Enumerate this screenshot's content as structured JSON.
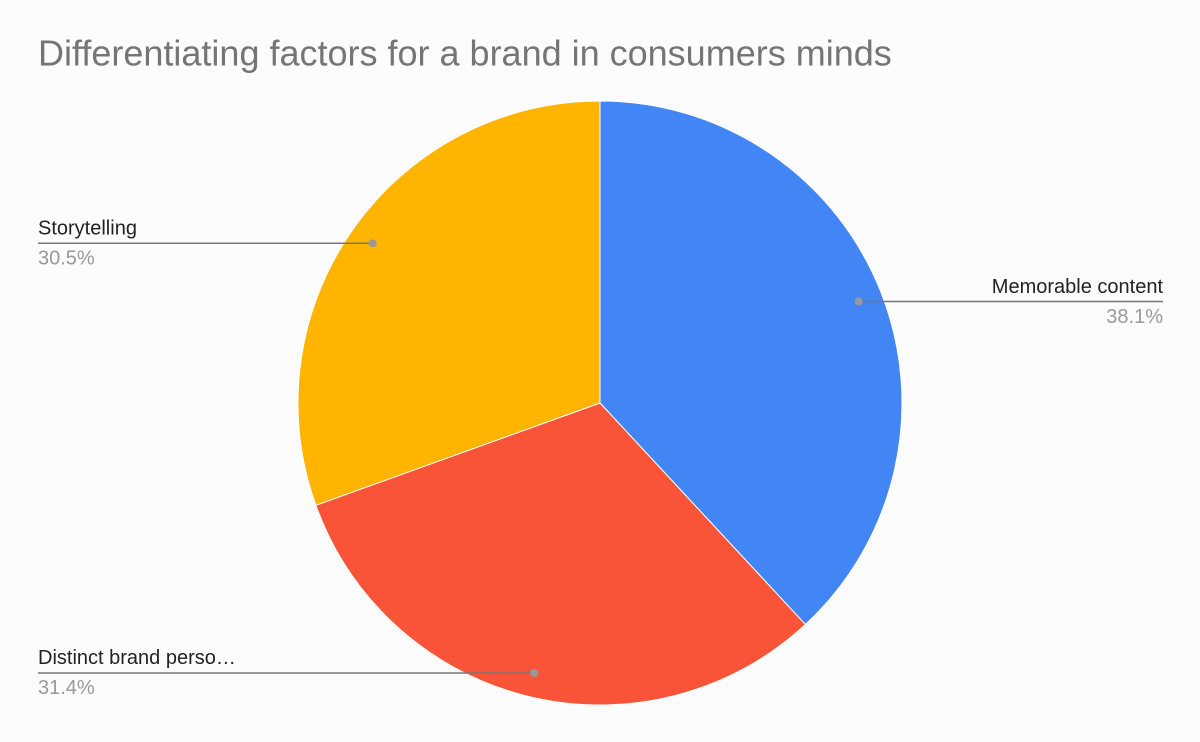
{
  "chart_data": {
    "type": "pie",
    "title": "Differentiating factors for a brand in consumers minds",
    "categories": [
      "Memorable content",
      "Distinct brand perso…",
      "Storytelling"
    ],
    "values": [
      38.1,
      31.4,
      30.5
    ],
    "value_labels": [
      "38.1%",
      "31.4%",
      "30.5%"
    ],
    "colors": [
      "#4285f4",
      "#f95437",
      "#ffb400"
    ]
  }
}
